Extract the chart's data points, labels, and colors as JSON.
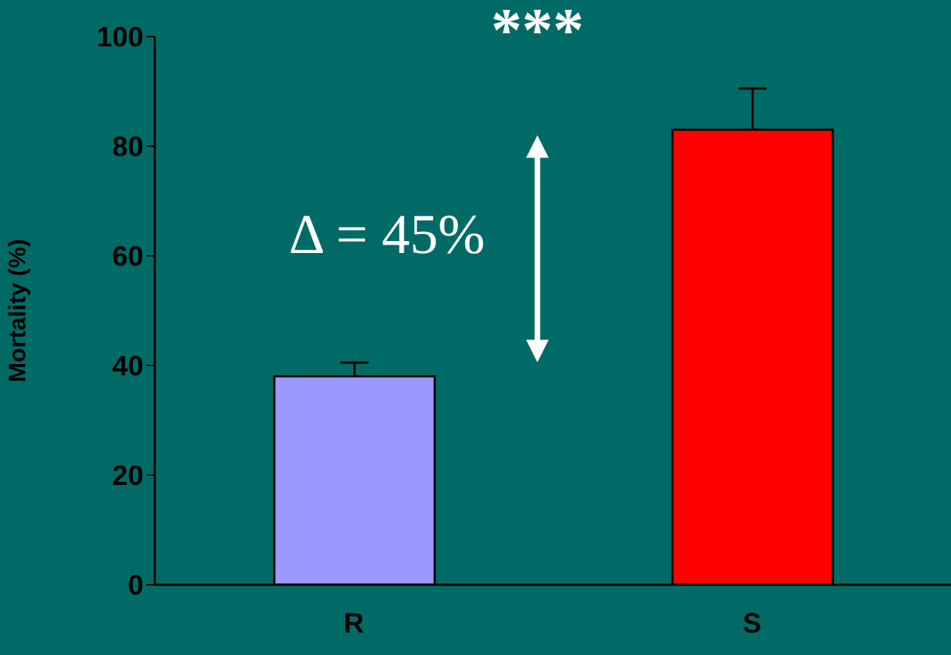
{
  "chart_data": {
    "type": "bar",
    "ylabel": "Mortality (%)",
    "categories": [
      "R",
      "S"
    ],
    "values": [
      38,
      83
    ],
    "colors": [
      "#9999ff",
      "#ff0000"
    ],
    "errors": [
      [
        38,
        40.5
      ],
      [
        83,
        90.5
      ]
    ],
    "ylim": [
      0,
      100
    ],
    "yticks": [
      0,
      20,
      40,
      60,
      80,
      100
    ],
    "annotations": [
      "***",
      "Δ = 45%"
    ]
  }
}
